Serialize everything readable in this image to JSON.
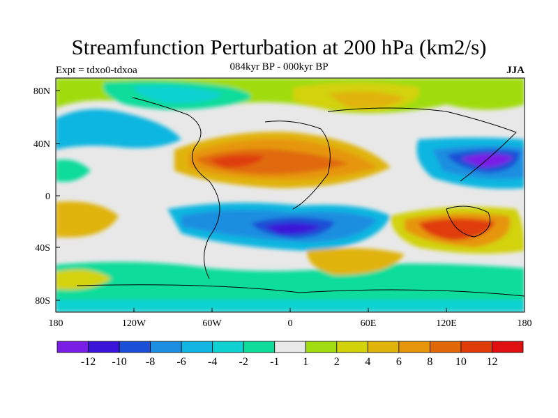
{
  "title": "Streamfunction Perturbation at 200 hPa (km2/s)",
  "subtitle": "084kyr BP - 000kyr BP",
  "left_label": "Expt = tdxo0-tdxoa",
  "right_label": "JJA",
  "map": {
    "lon_ticks": [
      "180",
      "120W",
      "60W",
      "0",
      "60E",
      "120E",
      "180"
    ],
    "lat_ticks": [
      "80N",
      "40N",
      "0",
      "40S",
      "80S"
    ]
  },
  "colorbar": {
    "colors": [
      "#7a1ee6",
      "#3a14d8",
      "#1a4fd6",
      "#1e8ee0",
      "#10b6e0",
      "#10d2d2",
      "#10dc9a",
      "#e8e8e8",
      "#a0dc10",
      "#d2d20a",
      "#e0b40a",
      "#e6960a",
      "#e06a0a",
      "#e03c0a",
      "#e01010"
    ],
    "labels": [
      "-12",
      "-10",
      "-8",
      "-6",
      "-4",
      "-2",
      "-1",
      "1",
      "2",
      "4",
      "6",
      "8",
      "10",
      "12"
    ]
  }
}
